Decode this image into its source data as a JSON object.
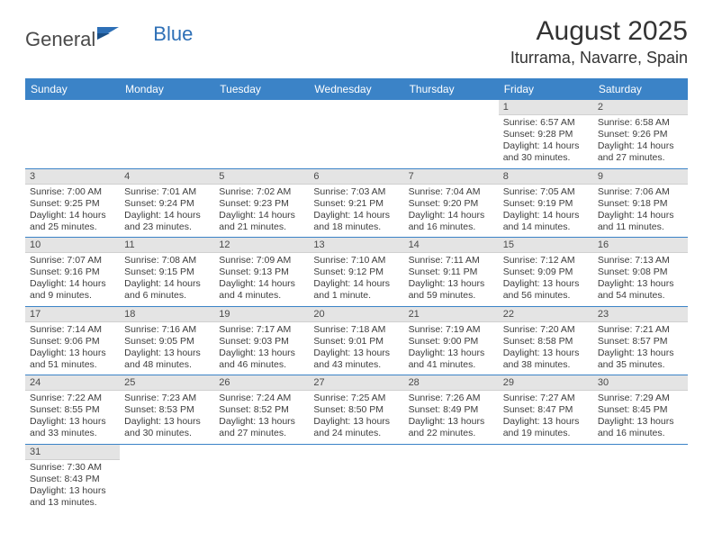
{
  "logo": {
    "part1": "General",
    "part2": "Blue"
  },
  "title": "August 2025",
  "location": "Iturrama, Navarre, Spain",
  "colors": {
    "header_bg": "#3b83c7",
    "daynum_bg": "#e4e4e4",
    "text": "#3d3d3d",
    "accent": "#2d6fb6"
  },
  "day_headers": [
    "Sunday",
    "Monday",
    "Tuesday",
    "Wednesday",
    "Thursday",
    "Friday",
    "Saturday"
  ],
  "weeks": [
    [
      null,
      null,
      null,
      null,
      null,
      {
        "n": "1",
        "sr": "Sunrise: 6:57 AM",
        "ss": "Sunset: 9:28 PM",
        "d1": "Daylight: 14 hours",
        "d2": "and 30 minutes."
      },
      {
        "n": "2",
        "sr": "Sunrise: 6:58 AM",
        "ss": "Sunset: 9:26 PM",
        "d1": "Daylight: 14 hours",
        "d2": "and 27 minutes."
      }
    ],
    [
      {
        "n": "3",
        "sr": "Sunrise: 7:00 AM",
        "ss": "Sunset: 9:25 PM",
        "d1": "Daylight: 14 hours",
        "d2": "and 25 minutes."
      },
      {
        "n": "4",
        "sr": "Sunrise: 7:01 AM",
        "ss": "Sunset: 9:24 PM",
        "d1": "Daylight: 14 hours",
        "d2": "and 23 minutes."
      },
      {
        "n": "5",
        "sr": "Sunrise: 7:02 AM",
        "ss": "Sunset: 9:23 PM",
        "d1": "Daylight: 14 hours",
        "d2": "and 21 minutes."
      },
      {
        "n": "6",
        "sr": "Sunrise: 7:03 AM",
        "ss": "Sunset: 9:21 PM",
        "d1": "Daylight: 14 hours",
        "d2": "and 18 minutes."
      },
      {
        "n": "7",
        "sr": "Sunrise: 7:04 AM",
        "ss": "Sunset: 9:20 PM",
        "d1": "Daylight: 14 hours",
        "d2": "and 16 minutes."
      },
      {
        "n": "8",
        "sr": "Sunrise: 7:05 AM",
        "ss": "Sunset: 9:19 PM",
        "d1": "Daylight: 14 hours",
        "d2": "and 14 minutes."
      },
      {
        "n": "9",
        "sr": "Sunrise: 7:06 AM",
        "ss": "Sunset: 9:18 PM",
        "d1": "Daylight: 14 hours",
        "d2": "and 11 minutes."
      }
    ],
    [
      {
        "n": "10",
        "sr": "Sunrise: 7:07 AM",
        "ss": "Sunset: 9:16 PM",
        "d1": "Daylight: 14 hours",
        "d2": "and 9 minutes."
      },
      {
        "n": "11",
        "sr": "Sunrise: 7:08 AM",
        "ss": "Sunset: 9:15 PM",
        "d1": "Daylight: 14 hours",
        "d2": "and 6 minutes."
      },
      {
        "n": "12",
        "sr": "Sunrise: 7:09 AM",
        "ss": "Sunset: 9:13 PM",
        "d1": "Daylight: 14 hours",
        "d2": "and 4 minutes."
      },
      {
        "n": "13",
        "sr": "Sunrise: 7:10 AM",
        "ss": "Sunset: 9:12 PM",
        "d1": "Daylight: 14 hours",
        "d2": "and 1 minute."
      },
      {
        "n": "14",
        "sr": "Sunrise: 7:11 AM",
        "ss": "Sunset: 9:11 PM",
        "d1": "Daylight: 13 hours",
        "d2": "and 59 minutes."
      },
      {
        "n": "15",
        "sr": "Sunrise: 7:12 AM",
        "ss": "Sunset: 9:09 PM",
        "d1": "Daylight: 13 hours",
        "d2": "and 56 minutes."
      },
      {
        "n": "16",
        "sr": "Sunrise: 7:13 AM",
        "ss": "Sunset: 9:08 PM",
        "d1": "Daylight: 13 hours",
        "d2": "and 54 minutes."
      }
    ],
    [
      {
        "n": "17",
        "sr": "Sunrise: 7:14 AM",
        "ss": "Sunset: 9:06 PM",
        "d1": "Daylight: 13 hours",
        "d2": "and 51 minutes."
      },
      {
        "n": "18",
        "sr": "Sunrise: 7:16 AM",
        "ss": "Sunset: 9:05 PM",
        "d1": "Daylight: 13 hours",
        "d2": "and 48 minutes."
      },
      {
        "n": "19",
        "sr": "Sunrise: 7:17 AM",
        "ss": "Sunset: 9:03 PM",
        "d1": "Daylight: 13 hours",
        "d2": "and 46 minutes."
      },
      {
        "n": "20",
        "sr": "Sunrise: 7:18 AM",
        "ss": "Sunset: 9:01 PM",
        "d1": "Daylight: 13 hours",
        "d2": "and 43 minutes."
      },
      {
        "n": "21",
        "sr": "Sunrise: 7:19 AM",
        "ss": "Sunset: 9:00 PM",
        "d1": "Daylight: 13 hours",
        "d2": "and 41 minutes."
      },
      {
        "n": "22",
        "sr": "Sunrise: 7:20 AM",
        "ss": "Sunset: 8:58 PM",
        "d1": "Daylight: 13 hours",
        "d2": "and 38 minutes."
      },
      {
        "n": "23",
        "sr": "Sunrise: 7:21 AM",
        "ss": "Sunset: 8:57 PM",
        "d1": "Daylight: 13 hours",
        "d2": "and 35 minutes."
      }
    ],
    [
      {
        "n": "24",
        "sr": "Sunrise: 7:22 AM",
        "ss": "Sunset: 8:55 PM",
        "d1": "Daylight: 13 hours",
        "d2": "and 33 minutes."
      },
      {
        "n": "25",
        "sr": "Sunrise: 7:23 AM",
        "ss": "Sunset: 8:53 PM",
        "d1": "Daylight: 13 hours",
        "d2": "and 30 minutes."
      },
      {
        "n": "26",
        "sr": "Sunrise: 7:24 AM",
        "ss": "Sunset: 8:52 PM",
        "d1": "Daylight: 13 hours",
        "d2": "and 27 minutes."
      },
      {
        "n": "27",
        "sr": "Sunrise: 7:25 AM",
        "ss": "Sunset: 8:50 PM",
        "d1": "Daylight: 13 hours",
        "d2": "and 24 minutes."
      },
      {
        "n": "28",
        "sr": "Sunrise: 7:26 AM",
        "ss": "Sunset: 8:49 PM",
        "d1": "Daylight: 13 hours",
        "d2": "and 22 minutes."
      },
      {
        "n": "29",
        "sr": "Sunrise: 7:27 AM",
        "ss": "Sunset: 8:47 PM",
        "d1": "Daylight: 13 hours",
        "d2": "and 19 minutes."
      },
      {
        "n": "30",
        "sr": "Sunrise: 7:29 AM",
        "ss": "Sunset: 8:45 PM",
        "d1": "Daylight: 13 hours",
        "d2": "and 16 minutes."
      }
    ],
    [
      {
        "n": "31",
        "sr": "Sunrise: 7:30 AM",
        "ss": "Sunset: 8:43 PM",
        "d1": "Daylight: 13 hours",
        "d2": "and 13 minutes."
      },
      null,
      null,
      null,
      null,
      null,
      null
    ]
  ]
}
